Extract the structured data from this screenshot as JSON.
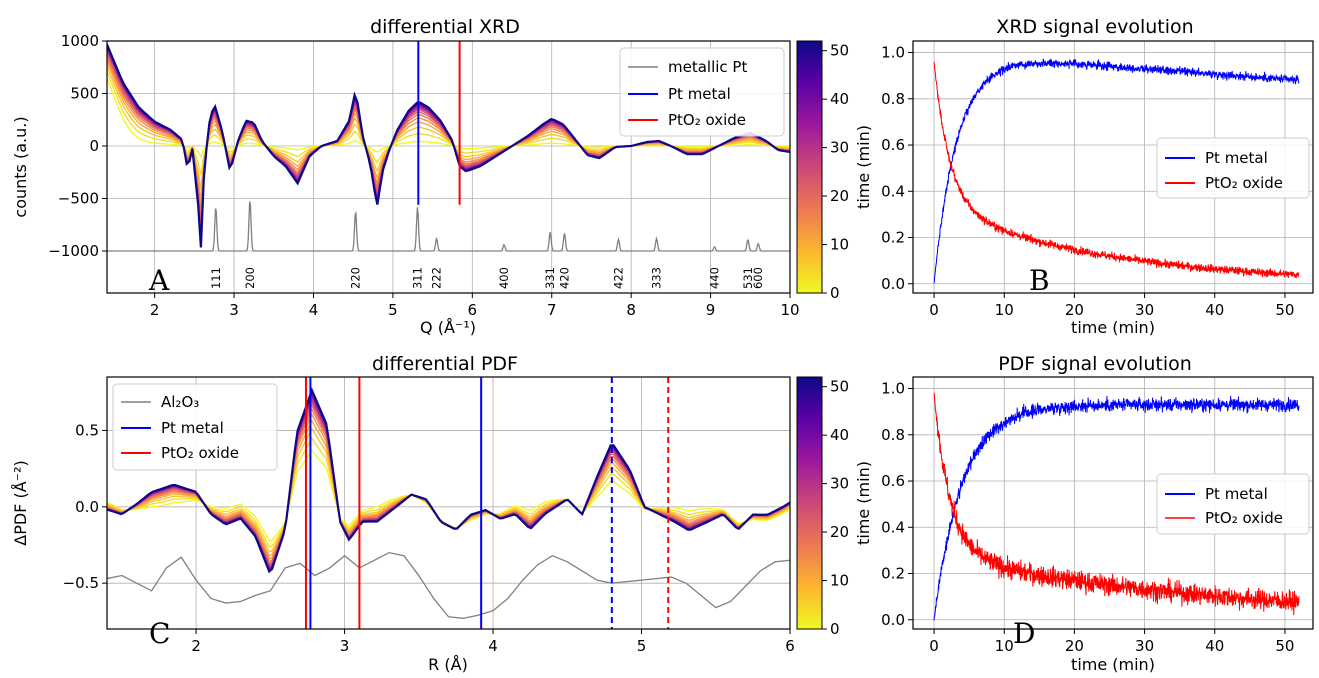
{
  "colors": {
    "pt_metal": "#0000ff",
    "pto2_oxide": "#ff0000",
    "reference": "#808080",
    "colormap": [
      "#f0f921",
      "#fdb42f",
      "#ed7953",
      "#cc4778",
      "#9c179e",
      "#5c01a6",
      "#0d0887"
    ]
  },
  "chart_data": [
    {
      "id": "A",
      "type": "line",
      "title": "differential XRD",
      "xlabel": "Q (Å⁻¹)",
      "ylabel": "counts (a.u.)",
      "xlim": [
        1.4,
        10
      ],
      "ylim": [
        -1400,
        1000
      ],
      "xticks": [
        "2",
        "3",
        "4",
        "5",
        "6",
        "7",
        "8",
        "9",
        "10"
      ],
      "yticks": [
        "−1000",
        "−500",
        "0",
        "500",
        "1000"
      ],
      "grid": true,
      "legend_position": "top-right",
      "panel_label": "A",
      "legend": [
        "metallic Pt",
        "Pt metal",
        "PtO₂ oxide"
      ],
      "vlines": [
        {
          "series": "Pt metal",
          "x": 5.32,
          "ymin": -560,
          "ymax": 1000,
          "style": "solid"
        },
        {
          "series": "PtO₂ oxide",
          "x": 5.84,
          "ymin": -560,
          "ymax": 1000,
          "style": "solid"
        }
      ],
      "reference_pattern": {
        "name": "metallic Pt",
        "baseline": -1000,
        "peaks": [
          {
            "hkl": "111",
            "q": 2.77,
            "height": 420
          },
          {
            "hkl": "200",
            "q": 3.2,
            "height": 490
          },
          {
            "hkl": "220",
            "q": 4.53,
            "height": 380
          },
          {
            "hkl": "311",
            "q": 5.31,
            "height": 420
          },
          {
            "hkl": "222",
            "q": 5.55,
            "height": 120
          },
          {
            "hkl": "400",
            "q": 6.4,
            "height": 60
          },
          {
            "hkl": "331",
            "q": 6.98,
            "height": 180
          },
          {
            "hkl": "420",
            "q": 7.16,
            "height": 170
          },
          {
            "hkl": "422",
            "q": 7.84,
            "height": 110
          },
          {
            "hkl": "333",
            "q": 8.32,
            "height": 120
          },
          {
            "hkl": "440",
            "q": 9.05,
            "height": 40
          },
          {
            "hkl": "531",
            "q": 9.47,
            "height": 110
          },
          {
            "hkl": "600",
            "q": 9.6,
            "height": 70
          }
        ]
      },
      "time_series_family": {
        "colorbar_label": "time (min)",
        "colorbar_range": [
          0,
          52
        ],
        "colorbar_ticks": [
          "0",
          "10",
          "20",
          "30",
          "40",
          "50"
        ],
        "curve_count": 16,
        "final_curve": [
          [
            1.4,
            980
          ],
          [
            1.6,
            620
          ],
          [
            1.8,
            380
          ],
          [
            2.0,
            240
          ],
          [
            2.2,
            160
          ],
          [
            2.35,
            60
          ],
          [
            2.42,
            -250
          ],
          [
            2.47,
            10
          ],
          [
            2.55,
            -600
          ],
          [
            2.58,
            -1050
          ],
          [
            2.62,
            -300
          ],
          [
            2.68,
            200
          ],
          [
            2.75,
            420
          ],
          [
            2.85,
            150
          ],
          [
            2.95,
            -250
          ],
          [
            3.05,
            50
          ],
          [
            3.15,
            250
          ],
          [
            3.25,
            230
          ],
          [
            3.35,
            50
          ],
          [
            3.5,
            -100
          ],
          [
            3.65,
            -200
          ],
          [
            3.8,
            -370
          ],
          [
            3.95,
            -100
          ],
          [
            4.1,
            0
          ],
          [
            4.3,
            50
          ],
          [
            4.45,
            250
          ],
          [
            4.53,
            550
          ],
          [
            4.62,
            100
          ],
          [
            4.72,
            -200
          ],
          [
            4.8,
            -600
          ],
          [
            4.87,
            -250
          ],
          [
            4.95,
            -50
          ],
          [
            5.05,
            150
          ],
          [
            5.2,
            350
          ],
          [
            5.32,
            440
          ],
          [
            5.45,
            380
          ],
          [
            5.6,
            250
          ],
          [
            5.75,
            50
          ],
          [
            5.84,
            -200
          ],
          [
            5.92,
            -250
          ],
          [
            6.1,
            -200
          ],
          [
            6.3,
            -100
          ],
          [
            6.5,
            0
          ],
          [
            6.7,
            100
          ],
          [
            6.9,
            220
          ],
          [
            7.0,
            270
          ],
          [
            7.15,
            210
          ],
          [
            7.3,
            60
          ],
          [
            7.45,
            -90
          ],
          [
            7.6,
            -120
          ],
          [
            7.8,
            -10
          ],
          [
            8.0,
            0
          ],
          [
            8.2,
            40
          ],
          [
            8.35,
            50
          ],
          [
            8.5,
            0
          ],
          [
            8.7,
            -80
          ],
          [
            8.9,
            -80
          ],
          [
            9.1,
            0
          ],
          [
            9.3,
            80
          ],
          [
            9.5,
            130
          ],
          [
            9.7,
            50
          ],
          [
            9.85,
            -40
          ],
          [
            10.0,
            -60
          ]
        ]
      }
    },
    {
      "id": "B",
      "type": "line",
      "title": "XRD signal evolution",
      "xlabel": "time (min)",
      "ylabel": "",
      "xlim": [
        -3,
        54
      ],
      "ylim": [
        -0.04,
        1.05
      ],
      "xticks": [
        "0",
        "10",
        "20",
        "30",
        "40",
        "50"
      ],
      "yticks": [
        "0.0",
        "0.2",
        "0.4",
        "0.6",
        "0.8",
        "1.0"
      ],
      "grid": true,
      "legend_position": "center-right",
      "panel_label": "B",
      "series": [
        {
          "name": "Pt metal",
          "kind": "rise",
          "tau": 3.2,
          "plateau": 0.97,
          "drift_end": 0.88,
          "noise": 0.018
        },
        {
          "name": "PtO₂ oxide",
          "kind": "decay",
          "fast_amp": 0.62,
          "fast_tau": 2.2,
          "slow_amp": 0.34,
          "slow_tau": 24,
          "noise": 0.018
        }
      ]
    },
    {
      "id": "C",
      "type": "line",
      "title": "differential PDF",
      "xlabel": "R (Å)",
      "ylabel": "ΔPDF (Å⁻²)",
      "xlim": [
        1.4,
        6
      ],
      "ylim": [
        -0.8,
        0.85
      ],
      "xticks": [
        "2",
        "3",
        "4",
        "5",
        "6"
      ],
      "yticks": [
        "−0.5",
        "0.0",
        "0.5"
      ],
      "grid": true,
      "legend_position": "top-left",
      "panel_label": "C",
      "legend": [
        "Al₂O₃",
        "Pt metal",
        "PtO₂ oxide"
      ],
      "vlines": [
        {
          "series": "PtO₂ oxide",
          "x": 2.74,
          "style": "solid"
        },
        {
          "series": "Pt metal",
          "x": 2.77,
          "style": "solid"
        },
        {
          "series": "PtO₂ oxide",
          "x": 3.1,
          "style": "solid"
        },
        {
          "series": "Pt metal",
          "x": 3.92,
          "style": "solid"
        },
        {
          "series": "Pt metal",
          "x": 4.8,
          "style": "dashed"
        },
        {
          "series": "PtO₂ oxide",
          "x": 5.18,
          "style": "dashed"
        }
      ],
      "reference_curve": {
        "name": "Al₂O₃",
        "points": [
          [
            1.4,
            -0.47
          ],
          [
            1.5,
            -0.45
          ],
          [
            1.6,
            -0.5
          ],
          [
            1.7,
            -0.55
          ],
          [
            1.8,
            -0.4
          ],
          [
            1.9,
            -0.33
          ],
          [
            2.0,
            -0.48
          ],
          [
            2.1,
            -0.6
          ],
          [
            2.2,
            -0.63
          ],
          [
            2.3,
            -0.62
          ],
          [
            2.4,
            -0.58
          ],
          [
            2.5,
            -0.55
          ],
          [
            2.6,
            -0.4
          ],
          [
            2.7,
            -0.37
          ],
          [
            2.8,
            -0.45
          ],
          [
            2.9,
            -0.4
          ],
          [
            3.0,
            -0.32
          ],
          [
            3.1,
            -0.4
          ],
          [
            3.2,
            -0.35
          ],
          [
            3.3,
            -0.3
          ],
          [
            3.4,
            -0.32
          ],
          [
            3.5,
            -0.45
          ],
          [
            3.6,
            -0.6
          ],
          [
            3.7,
            -0.72
          ],
          [
            3.8,
            -0.73
          ],
          [
            3.9,
            -0.71
          ],
          [
            4.0,
            -0.68
          ],
          [
            4.1,
            -0.6
          ],
          [
            4.2,
            -0.48
          ],
          [
            4.3,
            -0.38
          ],
          [
            4.4,
            -0.32
          ],
          [
            4.5,
            -0.36
          ],
          [
            4.6,
            -0.42
          ],
          [
            4.7,
            -0.48
          ],
          [
            4.8,
            -0.5
          ],
          [
            4.9,
            -0.49
          ],
          [
            5.0,
            -0.48
          ],
          [
            5.1,
            -0.47
          ],
          [
            5.2,
            -0.46
          ],
          [
            5.3,
            -0.5
          ],
          [
            5.4,
            -0.58
          ],
          [
            5.5,
            -0.66
          ],
          [
            5.6,
            -0.62
          ],
          [
            5.7,
            -0.52
          ],
          [
            5.8,
            -0.42
          ],
          [
            5.9,
            -0.36
          ],
          [
            6.0,
            -0.35
          ]
        ]
      },
      "time_series_family": {
        "colorbar_label": "time (min)",
        "colorbar_range": [
          0,
          52
        ],
        "colorbar_ticks": [
          "0",
          "10",
          "20",
          "30",
          "40",
          "50"
        ],
        "curve_count": 16,
        "final_curve": [
          [
            1.4,
            -0.02
          ],
          [
            1.5,
            -0.05
          ],
          [
            1.6,
            0.02
          ],
          [
            1.7,
            0.1
          ],
          [
            1.85,
            0.15
          ],
          [
            2.0,
            0.1
          ],
          [
            2.1,
            -0.05
          ],
          [
            2.2,
            -0.12
          ],
          [
            2.3,
            -0.08
          ],
          [
            2.4,
            -0.2
          ],
          [
            2.5,
            -0.45
          ],
          [
            2.6,
            -0.15
          ],
          [
            2.68,
            0.5
          ],
          [
            2.78,
            0.78
          ],
          [
            2.88,
            0.55
          ],
          [
            2.97,
            -0.1
          ],
          [
            3.03,
            -0.22
          ],
          [
            3.12,
            -0.1
          ],
          [
            3.22,
            -0.1
          ],
          [
            3.35,
            0.0
          ],
          [
            3.45,
            0.08
          ],
          [
            3.55,
            0.05
          ],
          [
            3.65,
            -0.1
          ],
          [
            3.75,
            -0.15
          ],
          [
            3.85,
            -0.05
          ],
          [
            3.95,
            -0.02
          ],
          [
            4.05,
            -0.08
          ],
          [
            4.15,
            -0.05
          ],
          [
            4.25,
            -0.15
          ],
          [
            4.35,
            -0.05
          ],
          [
            4.5,
            0.05
          ],
          [
            4.6,
            -0.05
          ],
          [
            4.7,
            0.2
          ],
          [
            4.8,
            0.43
          ],
          [
            4.92,
            0.25
          ],
          [
            5.02,
            0.0
          ],
          [
            5.12,
            -0.05
          ],
          [
            5.22,
            -0.1
          ],
          [
            5.32,
            -0.16
          ],
          [
            5.45,
            -0.1
          ],
          [
            5.55,
            -0.05
          ],
          [
            5.65,
            -0.15
          ],
          [
            5.75,
            -0.05
          ],
          [
            5.85,
            -0.05
          ],
          [
            5.95,
            0.0
          ],
          [
            6.0,
            0.03
          ]
        ]
      }
    },
    {
      "id": "D",
      "type": "line",
      "title": "PDF signal evolution",
      "xlabel": "time (min)",
      "ylabel": "",
      "xlim": [
        -3,
        54
      ],
      "ylim": [
        -0.04,
        1.05
      ],
      "xticks": [
        "0",
        "10",
        "20",
        "30",
        "40",
        "50"
      ],
      "yticks": [
        "0.0",
        "0.2",
        "0.4",
        "0.6",
        "0.8",
        "1.0"
      ],
      "grid": true,
      "legend_position": "center-right",
      "panel_label": "D",
      "series": [
        {
          "name": "Pt metal",
          "kind": "rise",
          "tau": 4.0,
          "plateau": 0.93,
          "drift_end": 0.93,
          "noise": 0.028
        },
        {
          "name": "PtO₂ oxide",
          "kind": "decay",
          "fast_amp": 0.7,
          "fast_tau": 2.3,
          "slow_amp": 0.28,
          "slow_tau": 40,
          "noise": 0.045
        }
      ]
    }
  ]
}
